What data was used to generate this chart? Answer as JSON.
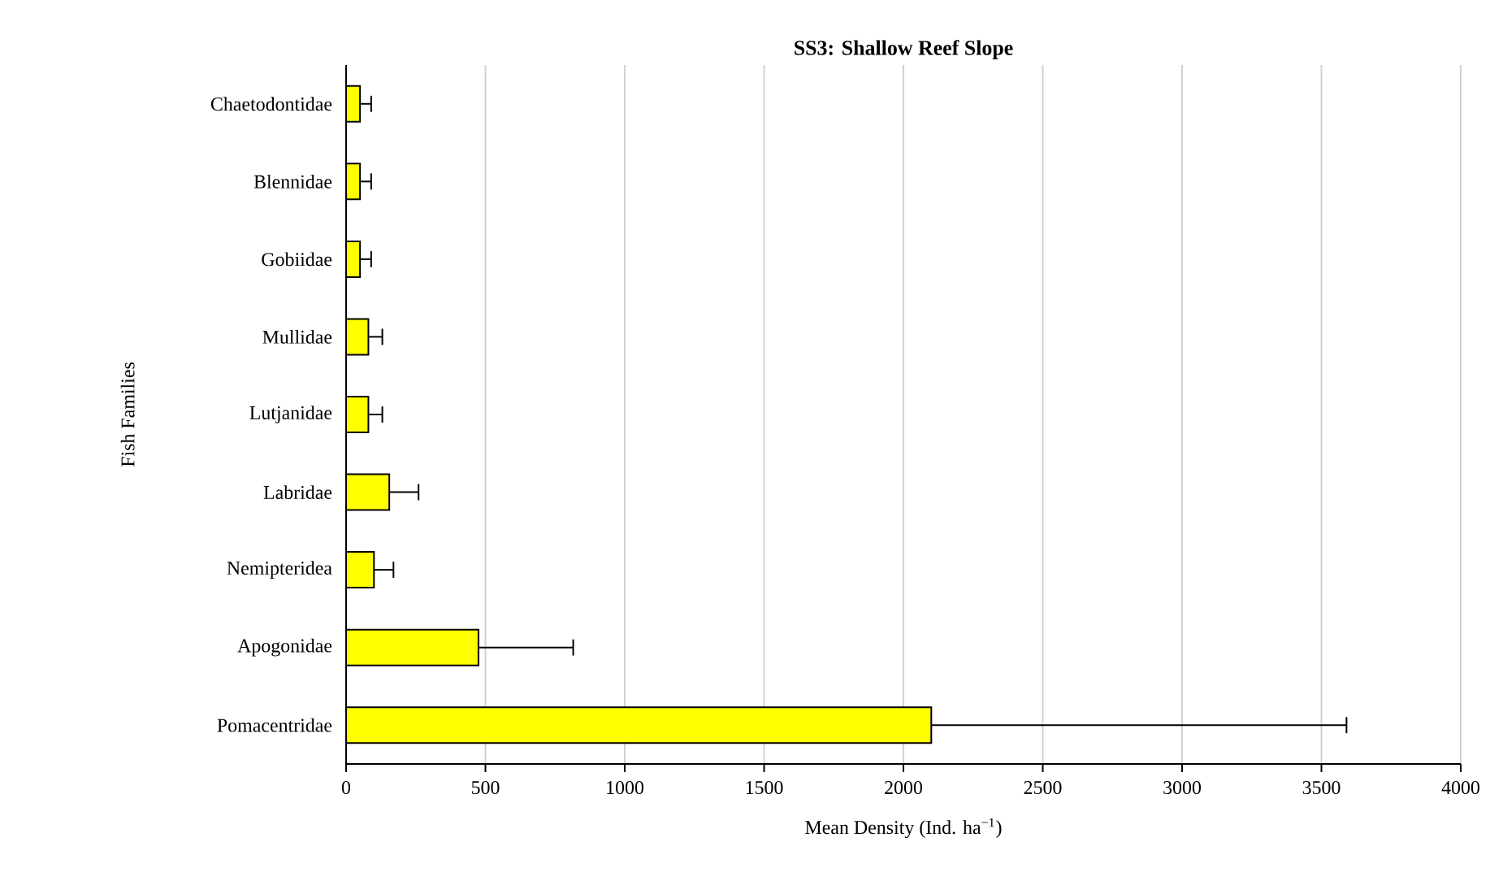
{
  "chart_data": {
    "type": "bar",
    "orientation": "horizontal",
    "title": "SS3: Shallow Reef Slope",
    "xlabel": "Mean Density (Ind. ha$^{−1}$)",
    "ylabel": "Fish Families",
    "categories": [
      "Chaetodontidae",
      "Blennidae",
      "Gobiidae",
      "Mullidae",
      "Lutjanidae",
      "Labridae",
      "Nemipteridea",
      "Apogonidae",
      "Pomacentridae"
    ],
    "values": [
      50,
      50,
      50,
      80,
      80,
      155,
      100,
      475,
      2100
    ],
    "errors": [
      40,
      40,
      40,
      50,
      50,
      105,
      70,
      340,
      1490
    ],
    "color": "#ffff00",
    "xlim": [
      0,
      4000
    ],
    "xticks": [
      0,
      500,
      1000,
      1500,
      2000,
      2500,
      3000,
      3500,
      4000
    ],
    "grid": "x"
  }
}
